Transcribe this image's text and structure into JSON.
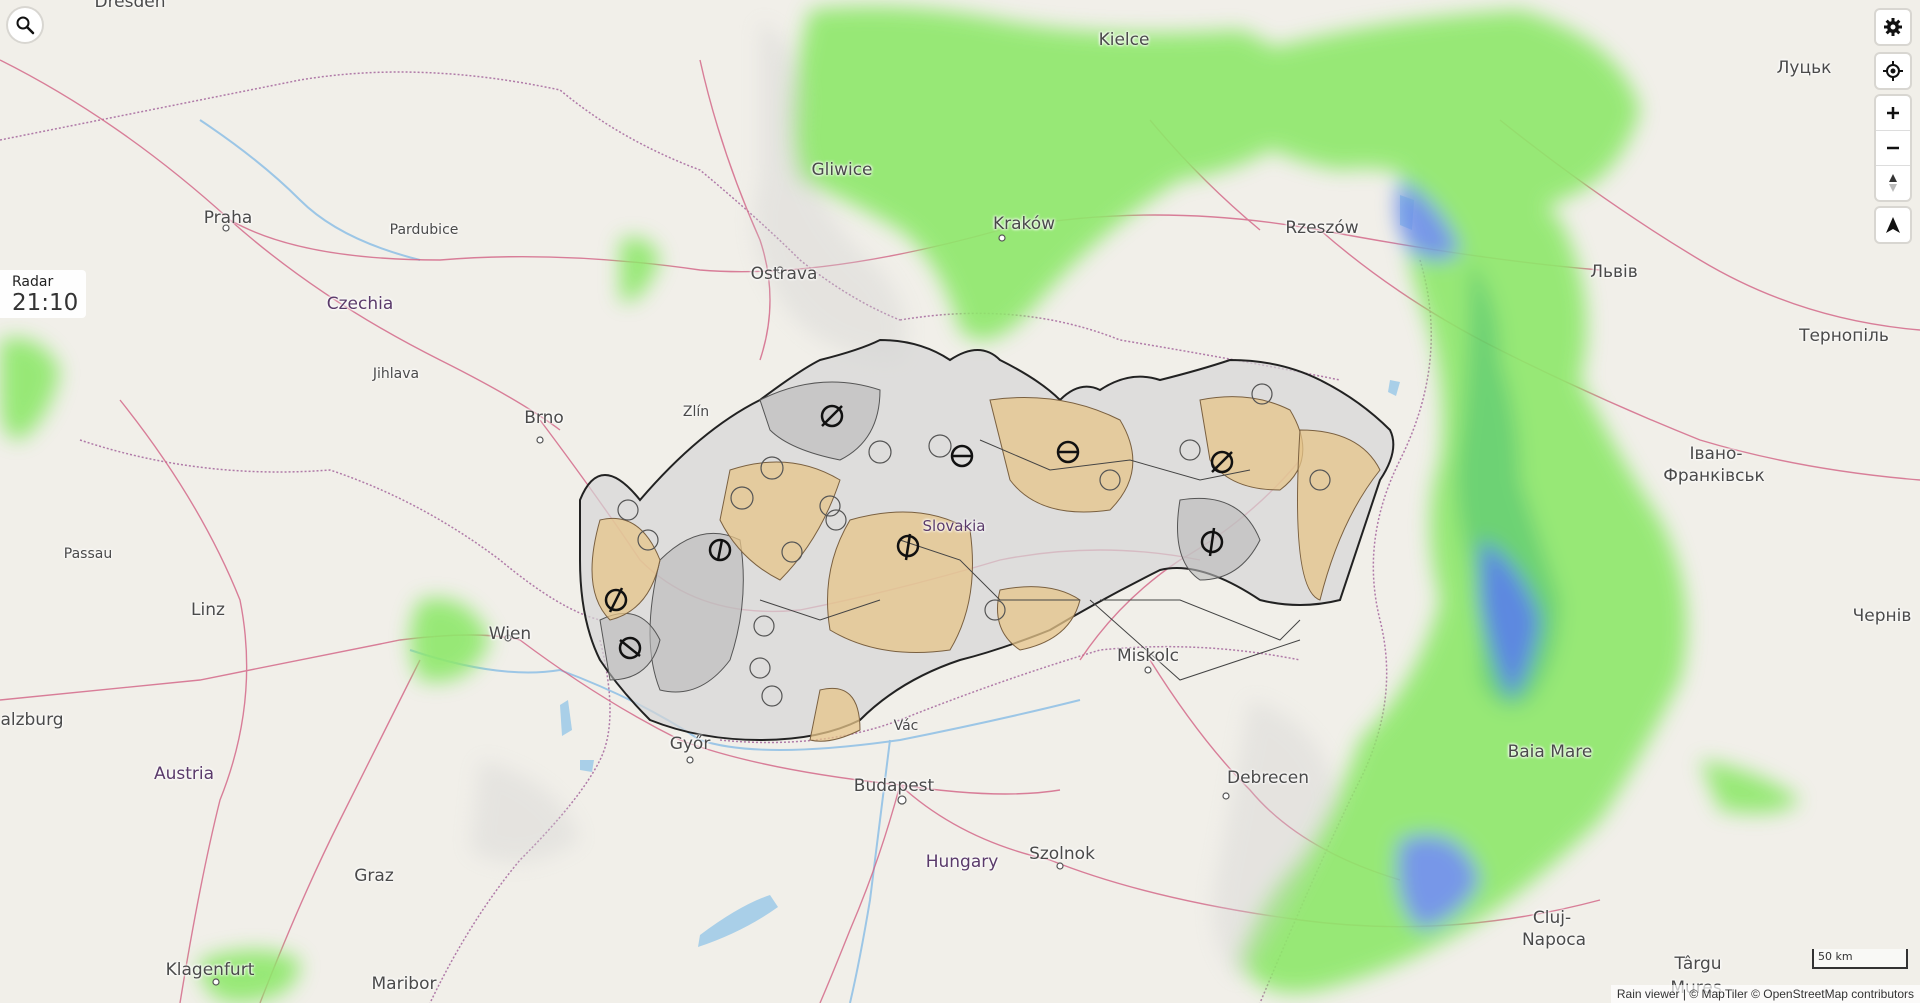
{
  "search": {
    "icon": "magnifier"
  },
  "radar": {
    "label": "Radar",
    "time": "21:10"
  },
  "controls": {
    "settings_icon": "gear",
    "locate_icon": "target",
    "zoom_in": "+",
    "zoom_out": "−",
    "compass_icon": "compass",
    "navigate_icon": "arrow"
  },
  "map_labels": {
    "dresden": "Dresden",
    "praha": "Praha",
    "pardubice": "Pardubice",
    "czechia": "Czechia",
    "jihlava": "Jihlava",
    "brno": "Brno",
    "zlin": "Zlín",
    "ostrava": "Ostrava",
    "gliwice": "Gliwice",
    "krakow": "Kraków",
    "kielce": "Kielce",
    "rzeszow": "Rzeszów",
    "lutsk": "Луцьк",
    "lviv": "Львів",
    "ternopil": "Тернопіль",
    "ivano_1": "Івано-",
    "ivano_2": "Франківськ",
    "cherniv": "Чернів",
    "passau": "Passau",
    "linz": "Linz",
    "wien": "Wien",
    "salzburg": "alzburg",
    "austria": "Austria",
    "graz": "Graz",
    "klagenfurt": "Klagenfurt",
    "maribor": "Maribor",
    "gyor": "Győr",
    "vac": "Vác",
    "budapest": "Budapest",
    "hungary": "Hungary",
    "szolnok": "Szolnok",
    "debrecen": "Debrecen",
    "miskolc": "Miskolc",
    "slovakia": "Slovakia",
    "baia_mare": "Baia Mare",
    "cluj_1": "Cluj-",
    "cluj_2": "Napoca",
    "targu": "Târgu",
    "mures": "Mureș"
  },
  "scale": {
    "label": "50 km"
  },
  "attribution": {
    "text": "Rain viewer | © MapTiler © OpenStreetMap contributors"
  },
  "colors": {
    "map_bg": "#f1efe9",
    "rain_light": "#8ee86a",
    "rain_heavy": "#5a8ce8",
    "zone_grey": "#c9c9c9",
    "zone_orange": "#e6c48a",
    "road": "#d46a8a",
    "border": "#b07aa8"
  }
}
